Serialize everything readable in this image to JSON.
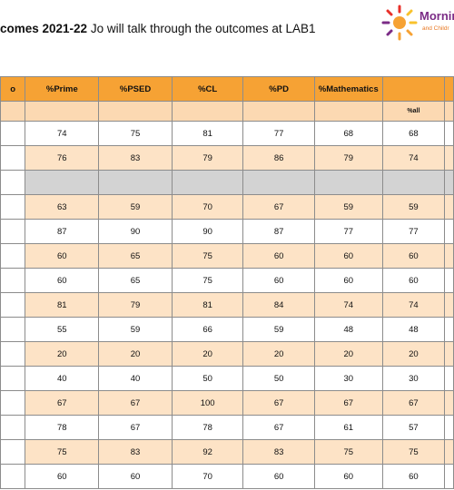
{
  "heading": {
    "bold": "comes 2021-22",
    "rest": " Jo will talk through the outcomes at LAB1"
  },
  "logo": {
    "main": "Mornin",
    "sub": "and Childr"
  },
  "colors": {
    "header": "#f6a234",
    "band": "#fde3c6",
    "subheader": "#fcd9b2",
    "grey": "#d3d3d3",
    "logo_purple": "#7b2c86",
    "logo_orange": "#e87722"
  },
  "table": {
    "first_col_header_fragment": "o",
    "headers": [
      "%Prime",
      "%PSED",
      "%CL",
      "%PD",
      "%Mathematics",
      ""
    ],
    "subheaders": [
      "",
      "",
      "",
      "",
      "",
      "%all"
    ],
    "rows": [
      [
        "74",
        "75",
        "81",
        "77",
        "68",
        "68"
      ],
      [
        "76",
        "83",
        "79",
        "86",
        "79",
        "74"
      ],
      [
        "",
        "",
        "",
        "",
        "",
        ""
      ],
      [
        "63",
        "59",
        "70",
        "67",
        "59",
        "59"
      ],
      [
        "87",
        "90",
        "90",
        "87",
        "77",
        "77"
      ],
      [
        "60",
        "65",
        "75",
        "60",
        "60",
        "60"
      ],
      [
        "60",
        "65",
        "75",
        "60",
        "60",
        "60"
      ],
      [
        "81",
        "79",
        "81",
        "84",
        "74",
        "74"
      ],
      [
        "55",
        "59",
        "66",
        "59",
        "48",
        "48"
      ],
      [
        "20",
        "20",
        "20",
        "20",
        "20",
        "20"
      ],
      [
        "40",
        "40",
        "50",
        "50",
        "30",
        "30"
      ],
      [
        "67",
        "67",
        "100",
        "67",
        "67",
        "67"
      ],
      [
        "78",
        "67",
        "78",
        "67",
        "61",
        "57"
      ],
      [
        "75",
        "83",
        "92",
        "83",
        "75",
        "75"
      ],
      [
        "60",
        "60",
        "70",
        "60",
        "60",
        "60"
      ]
    ]
  }
}
